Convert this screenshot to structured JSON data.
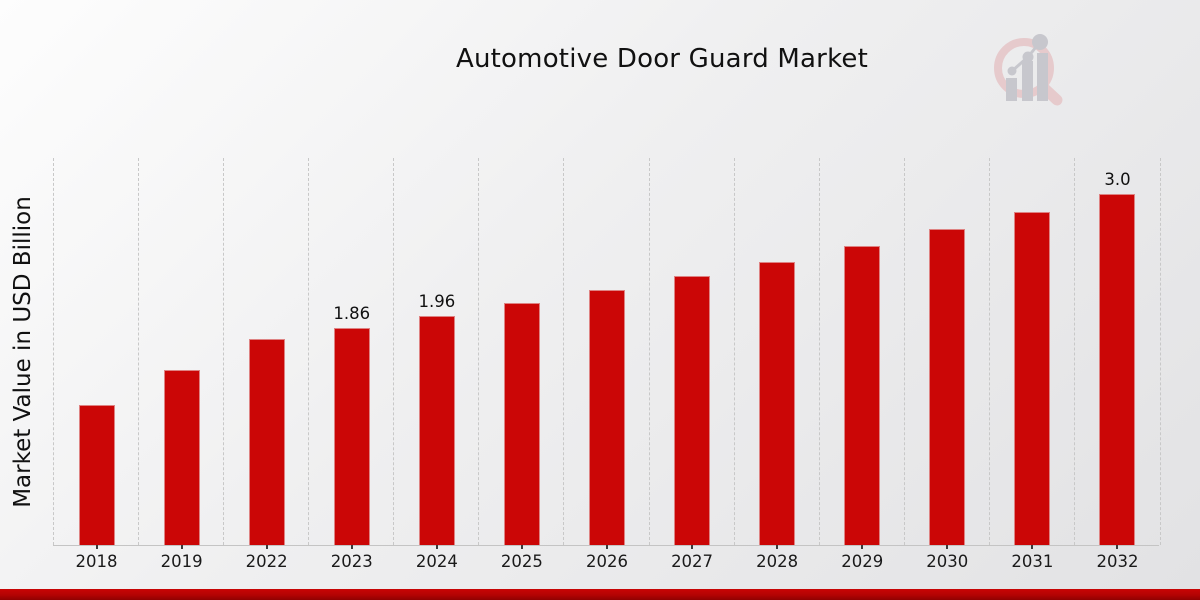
{
  "header": {
    "title": "Automotive Door Guard Market"
  },
  "watermark": {
    "icon": "magnifier-bar-chart-logo",
    "ring_color": "#e6c9cb",
    "bars_color": "#c6c6cc"
  },
  "chart_data": {
    "type": "bar",
    "title": "Automotive Door Guard Market",
    "xlabel": "",
    "ylabel": "Market Value in USD Billion",
    "categories": [
      "2018",
      "2019",
      "2022",
      "2023",
      "2024",
      "2025",
      "2026",
      "2027",
      "2028",
      "2029",
      "2030",
      "2031",
      "2032"
    ],
    "values": [
      1.2,
      1.5,
      1.76,
      1.86,
      1.96,
      2.07,
      2.18,
      2.3,
      2.42,
      2.56,
      2.7,
      2.85,
      3.0
    ],
    "bar_labels": [
      "",
      "",
      "",
      "1.86",
      "1.96",
      "",
      "",
      "",
      "",
      "",
      "",
      "",
      "3.0"
    ],
    "unit": "USD Billion",
    "ylim": [
      0,
      3.31
    ],
    "bar_color": "#cb0606",
    "grid": "vertical-dashed",
    "legend": "none"
  },
  "footer": {
    "accent_band_colors": [
      "#c90505",
      "#8f0101"
    ]
  }
}
